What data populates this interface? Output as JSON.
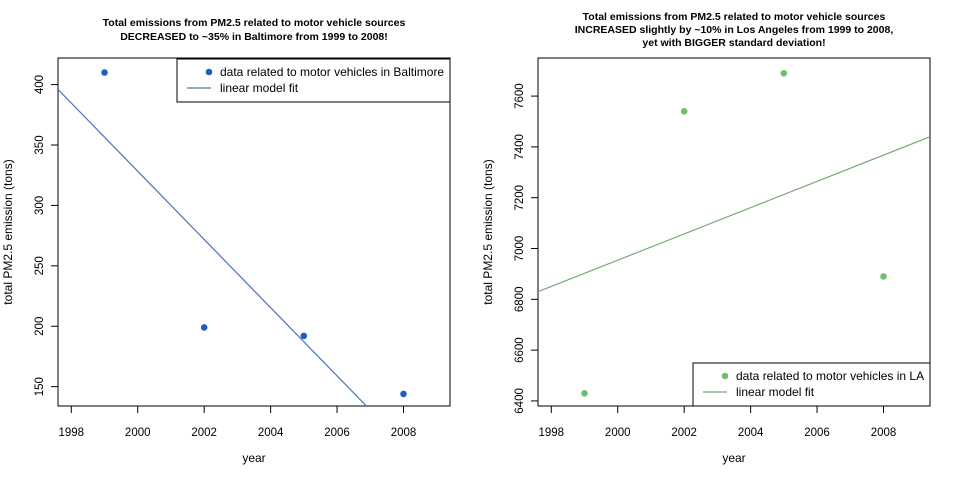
{
  "chart_data": [
    {
      "type": "scatter",
      "title": [
        "Total emissions from PM2.5 related to motor vehicle sources",
        "DECREASED to ~35% in Baltimore from 1999 to 2008!"
      ],
      "xlabel": "year",
      "ylabel": "total PM2.5 emission (tons)",
      "xlim": [
        1997.6,
        2009.4
      ],
      "ylim": [
        134,
        422
      ],
      "xticks": [
        1998,
        2000,
        2002,
        2004,
        2006,
        2008
      ],
      "yticks": [
        150,
        200,
        250,
        300,
        350,
        400
      ],
      "legend_position": "top-right",
      "series": [
        {
          "name": "data related to motor vehicles in Baltimore",
          "kind": "points",
          "color": "#1f5fbf",
          "x": [
            1999,
            2002,
            2005,
            2008
          ],
          "y": [
            410,
            199,
            192,
            144
          ]
        },
        {
          "name": "linear model fit",
          "kind": "line",
          "color": "#4a74b8",
          "x": [
            1997.6,
            2009.4
          ],
          "y": [
            396,
            63
          ]
        }
      ]
    },
    {
      "type": "scatter",
      "title": [
        "Total emissions from PM2.5 related to motor vehicle sources",
        "INCREASED slightly by ~10%  in Los Angeles from 1999 to 2008,",
        "yet with BIGGER standard deviation!"
      ],
      "xlabel": "year",
      "ylabel": "total PM2.5 emission (tons)",
      "xlim": [
        1997.6,
        2009.4
      ],
      "ylim": [
        6380,
        7750
      ],
      "xticks": [
        1998,
        2000,
        2002,
        2004,
        2006,
        2008
      ],
      "yticks": [
        6400,
        6600,
        6800,
        7000,
        7200,
        7400,
        7600
      ],
      "legend_position": "bottom-right",
      "series": [
        {
          "name": "data related to motor vehicles in LA",
          "kind": "points",
          "color": "#6cc06c",
          "x": [
            1999,
            2002,
            2005,
            2008
          ],
          "y": [
            6430,
            7540,
            7690,
            6890
          ]
        },
        {
          "name": "linear model fit",
          "kind": "line",
          "color": "#7aa87a",
          "x": [
            1997.6,
            2009.4
          ],
          "y": [
            6830,
            7440
          ]
        }
      ]
    }
  ]
}
